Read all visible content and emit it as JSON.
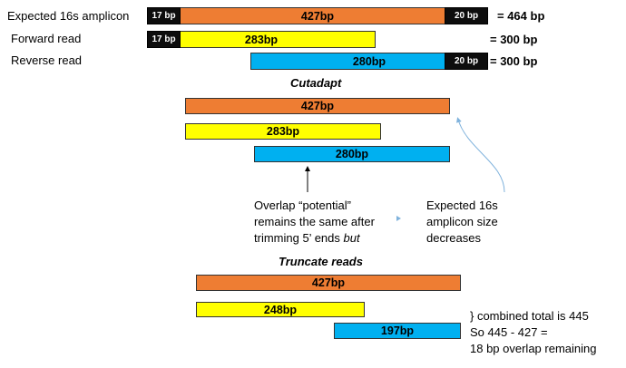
{
  "top": {
    "rows": [
      {
        "label": "Expected 16s amplicon",
        "left_cap": "17 bp",
        "center": "427bp",
        "right_cap": "20 bp",
        "total": "= 464 bp"
      },
      {
        "label": "Forward read",
        "left_cap": "17 bp",
        "center": "283bp",
        "total": "= 300 bp"
      },
      {
        "label": "Reverse read",
        "center": "280bp",
        "right_cap": "20 bp",
        "total": "= 300 bp"
      }
    ]
  },
  "cutadapt": {
    "heading": "Cutadapt",
    "amplicon": "427bp",
    "forward": "283bp",
    "reverse": "280bp",
    "overlap_note": {
      "line1": "Overlap “potential”",
      "line2": "remains the same after",
      "line3_prefix": "trimming 5’ ends ",
      "line3_emphasis": "but"
    },
    "size_note": {
      "line1": "Expected 16s",
      "line2": "amplicon size",
      "line3": "decreases"
    }
  },
  "truncate": {
    "heading": "Truncate reads",
    "amplicon": "427bp",
    "forward": "248bp",
    "reverse": "197bp",
    "summary": {
      "line1": "} combined total is 445",
      "line2": "So 445 - 427 =",
      "line3": "18 bp overlap remaining"
    }
  },
  "colors": {
    "amplicon": "#ee7d33",
    "forward": "#ffff00",
    "reverse": "#00b0f0",
    "cap": "#0d0d0d",
    "arrow_light": "#7fb2dc"
  }
}
